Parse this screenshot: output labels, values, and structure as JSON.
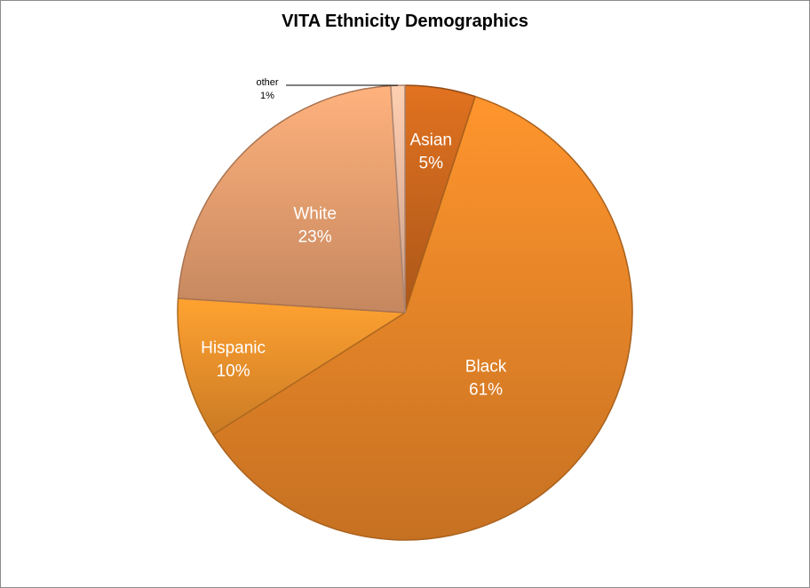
{
  "chart_data": {
    "type": "pie",
    "title": "VITA Ethnicity Demographics",
    "start_angle_deg": 0,
    "direction": "clockwise",
    "slices": [
      {
        "name": "Asian",
        "value": 5,
        "label": "5%",
        "color": "#d06a1e"
      },
      {
        "name": "Black",
        "value": 61,
        "label": "61%",
        "color": "#f28a2a"
      },
      {
        "name": "Hispanic",
        "value": 10,
        "label": "10%",
        "color": "#f7962d"
      },
      {
        "name": "White",
        "value": 23,
        "label": "23%",
        "color": "#f0a574"
      },
      {
        "name": "other",
        "value": 1,
        "label": "1%",
        "color": "#f5c0a4"
      }
    ]
  }
}
